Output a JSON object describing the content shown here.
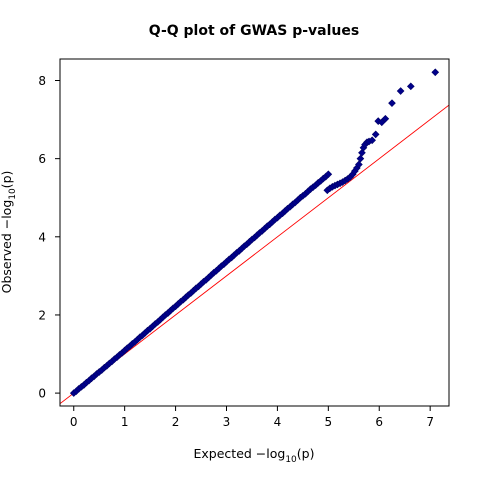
{
  "chart_data": {
    "type": "scatter",
    "title": "Q-Q plot of GWAS p-values",
    "xlabel": {
      "prefix": "Expected  −log",
      "sub": "10",
      "suffix": "(p)"
    },
    "ylabel": {
      "prefix": "Observed  −log",
      "sub": "10",
      "suffix": "(p)"
    },
    "xlim": [
      -0.27,
      7.37
    ],
    "ylim": [
      -0.33,
      8.55
    ],
    "xticks": [
      0,
      1,
      2,
      3,
      4,
      5,
      6,
      7
    ],
    "yticks": [
      0,
      2,
      4,
      6,
      8
    ],
    "grid": false,
    "reference_line": {
      "intercept": 0,
      "slope": 1,
      "color": "#ff0000"
    },
    "colors": {
      "marker_fill": "#00008b",
      "marker_edge": "#000066",
      "line": "#ff0000"
    },
    "marker": "diamond",
    "series": [
      {
        "points": [
          [
            0.0,
            0.0
          ],
          [
            0.05,
            0.05
          ],
          [
            0.1,
            0.11
          ],
          [
            0.15,
            0.16
          ],
          [
            0.2,
            0.21
          ],
          [
            0.25,
            0.27
          ],
          [
            0.3,
            0.32
          ],
          [
            0.35,
            0.38
          ],
          [
            0.4,
            0.43
          ],
          [
            0.45,
            0.49
          ],
          [
            0.5,
            0.54
          ],
          [
            0.55,
            0.59
          ],
          [
            0.6,
            0.65
          ],
          [
            0.65,
            0.7
          ],
          [
            0.7,
            0.76
          ],
          [
            0.75,
            0.81
          ],
          [
            0.8,
            0.87
          ],
          [
            0.85,
            0.92
          ],
          [
            0.9,
            0.98
          ],
          [
            0.95,
            1.03
          ],
          [
            1.0,
            1.09
          ],
          [
            1.05,
            1.15
          ],
          [
            1.1,
            1.2
          ],
          [
            1.15,
            1.26
          ],
          [
            1.2,
            1.31
          ],
          [
            1.25,
            1.37
          ],
          [
            1.3,
            1.43
          ],
          [
            1.35,
            1.48
          ],
          [
            1.4,
            1.54
          ],
          [
            1.45,
            1.6
          ],
          [
            1.5,
            1.65
          ],
          [
            1.55,
            1.71
          ],
          [
            1.6,
            1.77
          ],
          [
            1.65,
            1.82
          ],
          [
            1.7,
            1.88
          ],
          [
            1.75,
            1.94
          ],
          [
            1.8,
            2.0
          ],
          [
            1.85,
            2.05
          ],
          [
            1.9,
            2.11
          ],
          [
            1.95,
            2.17
          ],
          [
            2.0,
            2.22
          ],
          [
            2.05,
            2.28
          ],
          [
            2.1,
            2.34
          ],
          [
            2.15,
            2.39
          ],
          [
            2.2,
            2.45
          ],
          [
            2.25,
            2.51
          ],
          [
            2.3,
            2.56
          ],
          [
            2.35,
            2.62
          ],
          [
            2.4,
            2.68
          ],
          [
            2.45,
            2.73
          ],
          [
            2.5,
            2.79
          ],
          [
            2.55,
            2.85
          ],
          [
            2.6,
            2.9
          ],
          [
            2.65,
            2.96
          ],
          [
            2.7,
            3.02
          ],
          [
            2.75,
            3.08
          ],
          [
            2.8,
            3.13
          ],
          [
            2.85,
            3.19
          ],
          [
            2.9,
            3.25
          ],
          [
            2.95,
            3.3
          ],
          [
            3.0,
            3.36
          ],
          [
            3.05,
            3.42
          ],
          [
            3.1,
            3.47
          ],
          [
            3.15,
            3.53
          ],
          [
            3.2,
            3.59
          ],
          [
            3.25,
            3.64
          ],
          [
            3.3,
            3.7
          ],
          [
            3.35,
            3.76
          ],
          [
            3.4,
            3.81
          ],
          [
            3.45,
            3.87
          ],
          [
            3.5,
            3.93
          ],
          [
            3.55,
            3.98
          ],
          [
            3.6,
            4.04
          ],
          [
            3.65,
            4.1
          ],
          [
            3.7,
            4.15
          ],
          [
            3.75,
            4.21
          ],
          [
            3.8,
            4.27
          ],
          [
            3.85,
            4.32
          ],
          [
            3.9,
            4.38
          ],
          [
            3.95,
            4.44
          ],
          [
            4.0,
            4.49
          ],
          [
            4.05,
            4.55
          ],
          [
            4.1,
            4.6
          ],
          [
            4.15,
            4.66
          ],
          [
            4.2,
            4.72
          ],
          [
            4.25,
            4.77
          ],
          [
            4.3,
            4.83
          ],
          [
            4.35,
            4.88
          ],
          [
            4.4,
            4.94
          ],
          [
            4.45,
            5.0
          ],
          [
            4.5,
            5.05
          ],
          [
            4.55,
            5.1
          ],
          [
            4.6,
            5.16
          ],
          [
            4.65,
            5.22
          ],
          [
            4.7,
            5.27
          ],
          [
            4.75,
            5.32
          ],
          [
            4.8,
            5.38
          ],
          [
            4.85,
            5.43
          ],
          [
            4.9,
            5.49
          ],
          [
            4.95,
            5.54
          ],
          [
            5.0,
            5.6
          ],
          [
            4.98,
            5.19
          ],
          [
            5.03,
            5.24
          ],
          [
            5.08,
            5.28
          ],
          [
            5.13,
            5.31
          ],
          [
            5.18,
            5.34
          ],
          [
            5.23,
            5.37
          ],
          [
            5.28,
            5.4
          ],
          [
            5.33,
            5.44
          ],
          [
            5.38,
            5.48
          ],
          [
            5.43,
            5.53
          ],
          [
            5.48,
            5.6
          ],
          [
            5.52,
            5.68
          ],
          [
            5.56,
            5.76
          ],
          [
            5.6,
            5.85
          ],
          [
            5.63,
            6.0
          ],
          [
            5.66,
            6.15
          ],
          [
            5.69,
            6.28
          ],
          [
            5.72,
            6.36
          ],
          [
            5.76,
            6.42
          ],
          [
            5.8,
            6.44
          ],
          [
            5.86,
            6.47
          ],
          [
            5.93,
            6.62
          ],
          [
            5.98,
            6.96
          ],
          [
            6.05,
            6.93
          ],
          [
            6.12,
            7.02
          ],
          [
            6.25,
            7.42
          ],
          [
            6.42,
            7.73
          ],
          [
            6.62,
            7.85
          ],
          [
            7.1,
            8.21
          ]
        ]
      }
    ]
  }
}
